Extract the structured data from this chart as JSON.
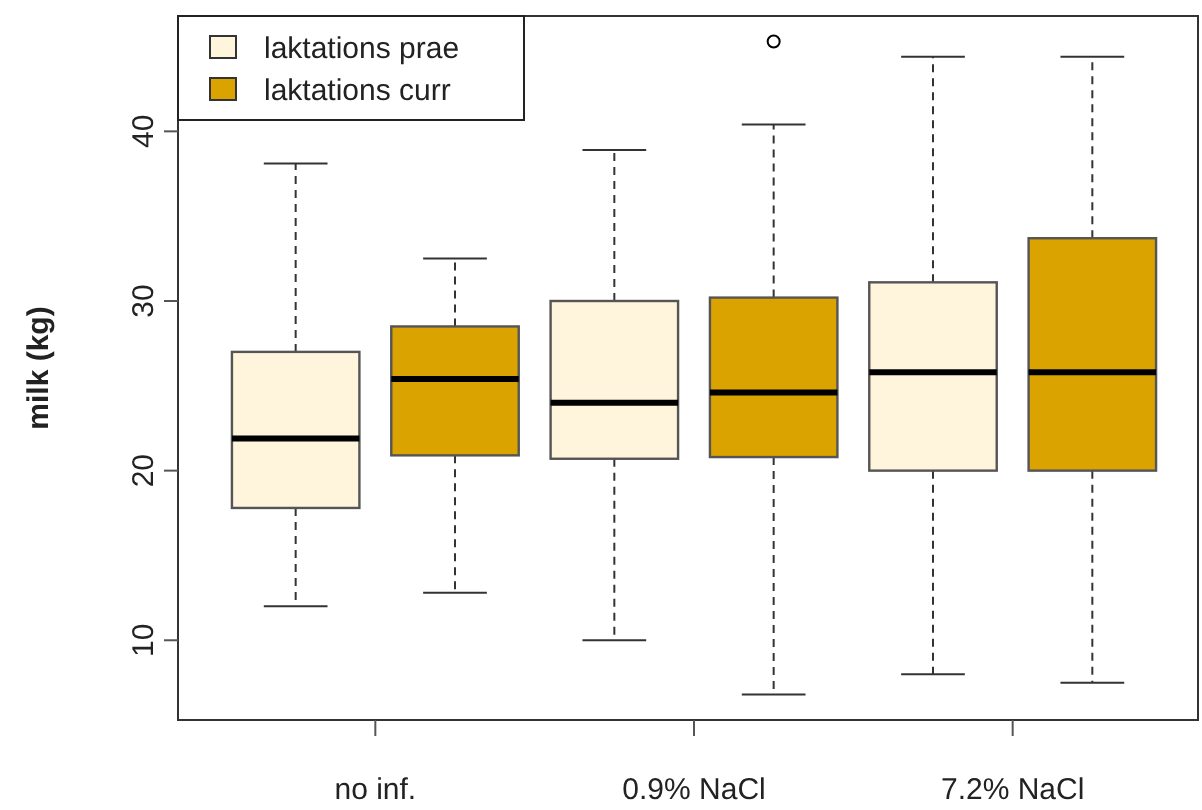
{
  "chart_data": {
    "type": "box",
    "ylabel": "milk (kg)",
    "categories": [
      "no inf.",
      "0.9% NaCl",
      "7.2% NaCl"
    ],
    "ylim": [
      5.3,
      46.8
    ],
    "yticks": [
      10,
      20,
      30,
      40
    ],
    "legend": "top left",
    "grid": false,
    "series": [
      {
        "name": "laktations prae",
        "color": "#fff5dc",
        "boxes": [
          {
            "low": 12.0,
            "q1": 17.8,
            "median": 21.9,
            "q3": 27.0,
            "high": 38.1
          },
          {
            "low": 10.0,
            "q1": 20.7,
            "median": 24.0,
            "q3": 30.0,
            "high": 38.9
          },
          {
            "low": 8.0,
            "q1": 20.0,
            "median": 25.8,
            "q3": 31.1,
            "high": 44.4
          }
        ]
      },
      {
        "name": "laktations curr",
        "color": "#daa300",
        "boxes": [
          {
            "low": 12.8,
            "q1": 20.9,
            "median": 25.4,
            "q3": 28.5,
            "high": 32.5
          },
          {
            "low": 6.8,
            "q1": 20.8,
            "median": 24.6,
            "q3": 30.2,
            "high": 40.4,
            "outliers": [
              45.3
            ]
          },
          {
            "low": 7.5,
            "q1": 20.0,
            "median": 25.8,
            "q3": 33.7,
            "high": 44.4
          }
        ]
      }
    ]
  }
}
